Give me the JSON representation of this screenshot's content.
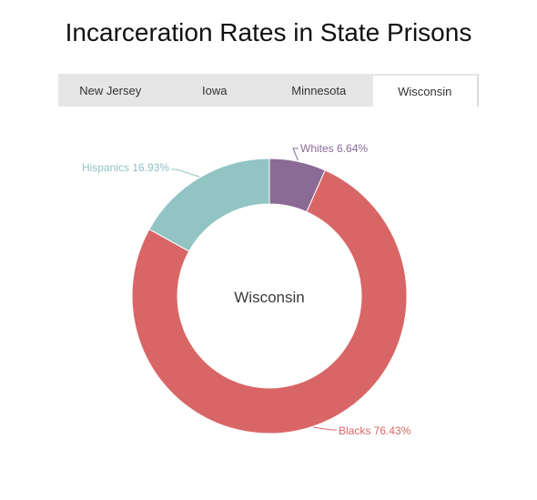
{
  "title": "Incarceration Rates in State Prisons",
  "tabs": [
    {
      "label": "New Jersey",
      "active": false
    },
    {
      "label": "Iowa",
      "active": false
    },
    {
      "label": "Minnesota",
      "active": false
    },
    {
      "label": "Wisconsin",
      "active": true
    }
  ],
  "chart_data": {
    "type": "pie",
    "title": "Wisconsin",
    "donut": true,
    "slices": [
      {
        "name": "Whites",
        "value": 6.64,
        "label": "Whites 6.64%",
        "color": "#8b6b96"
      },
      {
        "name": "Blacks",
        "value": 76.43,
        "label": "Blacks 76.43%",
        "color": "#d96666"
      },
      {
        "name": "Hispanics",
        "value": 16.93,
        "label": "Hispanics 16.93%",
        "color": "#92c4c4"
      }
    ]
  }
}
